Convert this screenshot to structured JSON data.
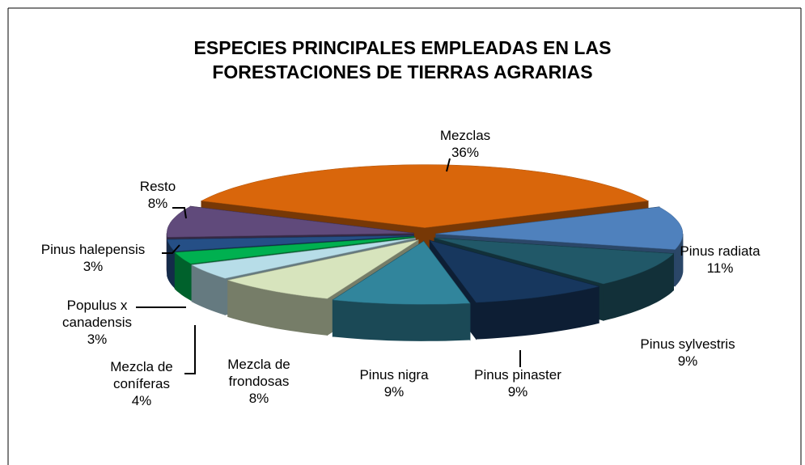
{
  "chart_data": {
    "type": "pie3d",
    "title": "ESPECIES PRINCIPALES EMPLEADAS EN LAS\nFORESTACIONES DE TIERRAS AGRARIAS",
    "categories": [
      "Mezclas",
      "Pinus radiata",
      "Pinus sylvestris",
      "Pinus pinaster",
      "Pinus nigra",
      "Mezcla de\nfrondosas",
      "Mezcla de\nconíferas",
      "Populus x\ncanadensis",
      "Pinus halepensis",
      "Resto"
    ],
    "values": [
      36,
      11,
      9,
      9,
      9,
      8,
      4,
      3,
      3,
      8
    ],
    "value_labels": [
      "36%",
      "11%",
      "9%",
      "9%",
      "9%",
      "8%",
      "4%",
      "3%",
      "3%",
      "8%"
    ],
    "colors": [
      "#d9660b",
      "#4f81bd",
      "#215868",
      "#17375e",
      "#31859c",
      "#d7e4bd",
      "#b7dde8",
      "#00b050",
      "#254f86",
      "#604a7b"
    ]
  }
}
